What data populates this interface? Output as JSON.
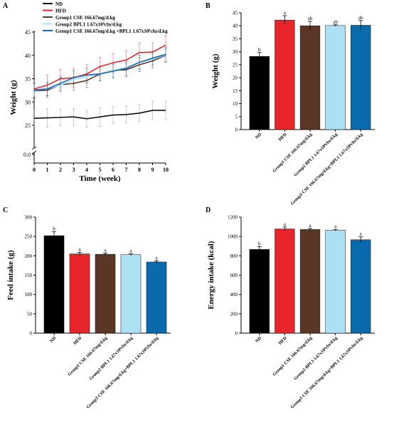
{
  "chart_data": [
    {
      "panel": "A",
      "type": "line",
      "xlabel": "Time (week)",
      "ylabel": "Weight (g)",
      "xlim": [
        0,
        10
      ],
      "ylim": [
        0,
        45
      ],
      "axis_break": true,
      "xticks": [
        "0",
        "1",
        "2",
        "3",
        "4",
        "5",
        "6",
        "7",
        "8",
        "9",
        "10"
      ],
      "yticks": [
        "0.0",
        "25",
        "30",
        "35",
        "40",
        "45"
      ],
      "legend_position": "top-left",
      "x": [
        0,
        1,
        2,
        3,
        4,
        5,
        6,
        7,
        8,
        9,
        10
      ],
      "series": [
        {
          "name": "ND",
          "color": "#111111",
          "values": [
            26.5,
            26.6,
            26.7,
            26.8,
            26.4,
            26.8,
            27.2,
            27.3,
            27.6,
            28.2,
            28.2
          ],
          "error": [
            2.0,
            2.0,
            1.8,
            1.8,
            1.8,
            2.0,
            1.8,
            1.8,
            1.8,
            2.0,
            2.0
          ]
        },
        {
          "name": "HFD",
          "color": "#e8252b",
          "values": [
            32.8,
            33.6,
            35.0,
            35.2,
            36.0,
            37.6,
            38.4,
            39.0,
            40.6,
            40.7,
            42.2
          ],
          "error": [
            2.0,
            2.2,
            2.0,
            2.0,
            2.0,
            2.0,
            2.0,
            2.0,
            2.0,
            2.0,
            2.0
          ]
        },
        {
          "name": "Group1 CSE 166.67mg/d.kg",
          "color": "#5a3626",
          "values": [
            32.4,
            32.5,
            33.7,
            34.0,
            34.6,
            36.0,
            36.8,
            36.9,
            38.0,
            38.8,
            40.0
          ],
          "error": [
            1.5,
            1.5,
            1.5,
            1.5,
            1.5,
            1.5,
            1.5,
            1.5,
            1.5,
            1.5,
            1.5
          ]
        },
        {
          "name": "Group2 BPL1 1.67x10⁸cfu/d.kg",
          "color": "#aee0f4",
          "values": [
            32.5,
            32.8,
            33.6,
            34.8,
            35.4,
            36.1,
            36.8,
            37.4,
            38.6,
            39.1,
            40.1
          ],
          "error": [
            1.5,
            1.5,
            1.5,
            1.5,
            1.5,
            1.5,
            1.5,
            1.5,
            1.5,
            1.5,
            1.5
          ]
        },
        {
          "name": "Group1 CSE 166.67mg/d.kg +BPL1 1.67x10⁸cfu/d.kg",
          "color": "#1c66a8",
          "values": [
            32.6,
            32.8,
            34.0,
            35.2,
            35.8,
            36.0,
            36.6,
            37.2,
            38.5,
            39.4,
            40.2
          ],
          "error": [
            1.5,
            1.5,
            1.5,
            1.5,
            1.5,
            1.5,
            1.5,
            1.5,
            1.5,
            1.5,
            1.5
          ]
        }
      ]
    },
    {
      "panel": "B",
      "type": "bar",
      "ylabel": "Weight (g)",
      "ylim": [
        0,
        45
      ],
      "yticks": [
        "0",
        "5",
        "10",
        "15",
        "20",
        "25",
        "30",
        "35",
        "40",
        "45"
      ],
      "categories": [
        "ND",
        "HFD",
        "Group1 CSE 166.67mg/d.kg",
        "Group2 BPL1 1.67x10⁸cfu/d.kg",
        "Group3 CSE 166.67mg/d.kg+BPL1 1.67x10⁸cfu/d.kg"
      ],
      "values": [
        28.2,
        42.2,
        40.0,
        40.1,
        40.2
      ],
      "errors": [
        1.5,
        1.7,
        1.7,
        0.3,
        1.8
      ],
      "letters": [
        "b",
        "a",
        "ab",
        "ab",
        "ab"
      ],
      "colors": [
        "#000000",
        "#e8252b",
        "#5a3626",
        "#aee0f4",
        "#0b6aab"
      ]
    },
    {
      "panel": "C",
      "type": "bar",
      "ylabel": "Feed intake (g)",
      "ylim": [
        0,
        300
      ],
      "yticks": [
        "0",
        "50",
        "100",
        "150",
        "200",
        "250",
        "300"
      ],
      "categories": [
        "ND",
        "HFD",
        "Group1 CSE 166.67mg/d.kg",
        "Group2 BPL1 1.67x10⁸cfu/d.kg",
        "Group3 CSE 166.67mg/d.kg+BPL1 1.67x10⁸cfu/d.kg"
      ],
      "values": [
        252,
        205,
        204,
        203,
        184
      ],
      "errors": [
        10,
        4,
        3,
        2,
        3
      ],
      "letters": [
        "b",
        "a",
        "a",
        "a",
        "a"
      ],
      "colors": [
        "#000000",
        "#e8252b",
        "#5a3626",
        "#aee0f4",
        "#0b6aab"
      ]
    },
    {
      "panel": "D",
      "type": "bar",
      "ylabel": "Energy intake (kcal)",
      "ylim": [
        0,
        1200
      ],
      "yticks": [
        "0",
        "200",
        "400",
        "600",
        "800",
        "1000",
        "1200"
      ],
      "categories": [
        "ND",
        "HFD",
        "Group1 CSE 166.67mg/d.kg",
        "Group2 BPL1 1.67x10⁸cfu/d.kg",
        "Group3 CSE 166.67mg/d.kg+BPL1 1.67x10⁸cfu/d.kg"
      ],
      "values": [
        866,
        1078,
        1072,
        1066,
        966
      ],
      "errors": [
        30,
        20,
        12,
        8,
        30
      ],
      "letters": [
        "b",
        "a",
        "a",
        "a",
        "a"
      ],
      "colors": [
        "#000000",
        "#e8252b",
        "#5a3626",
        "#aee0f4",
        "#0b6aab"
      ]
    }
  ]
}
